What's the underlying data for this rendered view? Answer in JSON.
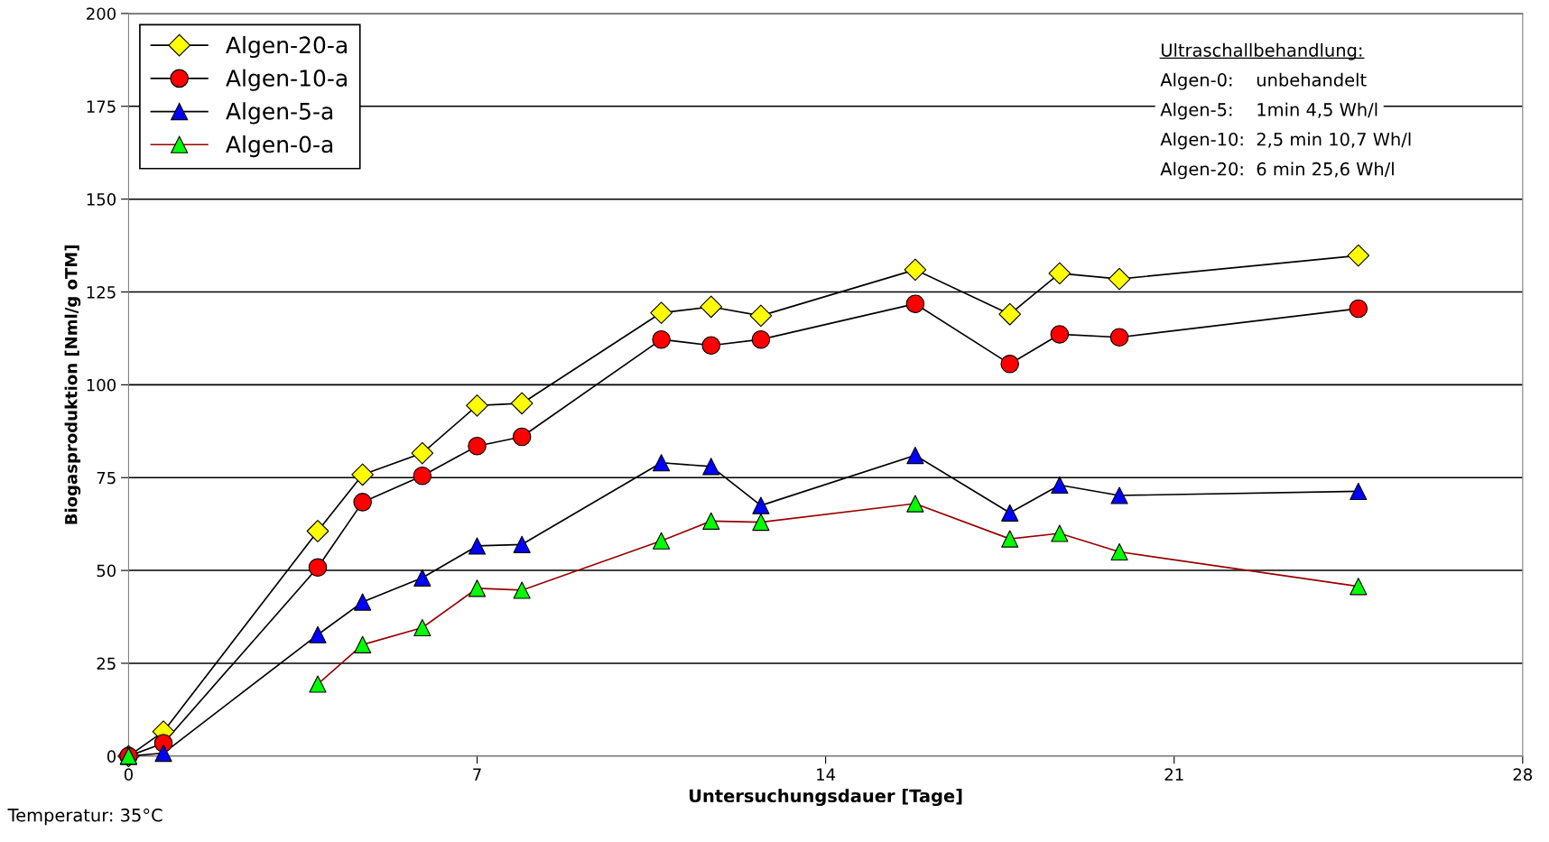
{
  "chart_data": {
    "type": "line",
    "xlabel": "Untersuchungsdauer [Tage]",
    "ylabel": "Biogasproduktion [Nml/g oTM]",
    "x": [
      0,
      0.7,
      3.8,
      4.7,
      5.9,
      7,
      7.9,
      10.7,
      11.7,
      12.7,
      15.8,
      17.7,
      18.7,
      19.9,
      24.7
    ],
    "series": [
      {
        "name": "Algen-20-a",
        "color": "#000000",
        "colors": [
          "#ffff00",
          "#ffff00",
          "#ffff00",
          "#ffff00",
          "#ffff00",
          "#ffff00",
          "#ffff00",
          "#ffff00",
          "#ffff00",
          "#ffff00",
          "#ffff00",
          "#ffff00",
          "#ffff00",
          "#ffff00",
          "#ffff00"
        ],
        "marker": "diamond",
        "values": [
          0,
          6.6,
          60.6,
          75.8,
          81.6,
          94.4,
          95,
          119.4,
          121,
          118.6,
          131,
          119,
          130,
          128.5,
          134.8
        ]
      },
      {
        "name": "Algen-10-a",
        "color": "#000000",
        "colors": [
          "#ff0000",
          "#ff0000",
          "#ff0000",
          "#ff0000",
          "#ff0000",
          "#ff0000",
          "#ff0000",
          "#ff0000",
          "#ff0000",
          "#ff0000",
          "#ff0000",
          "#ff0000",
          "#ff0000",
          "#ff0000",
          "#ff0000"
        ],
        "marker": "circle",
        "values": [
          0,
          3.5,
          50.8,
          68.4,
          75.5,
          83.5,
          86,
          112.2,
          110.6,
          112.2,
          121.8,
          105.6,
          113.6,
          112.8,
          120.5
        ]
      },
      {
        "name": "Algen-5-a",
        "color": "#000000",
        "colors": [
          "#0000ff",
          "#0000ff",
          "#0000ff",
          "#0000ff",
          "#0000ff",
          "#0000ff",
          "#0000ff",
          "#0000ff",
          "#0000ff",
          "#0000ff",
          "#0000ff",
          "#0000ff",
          "#0000ff",
          "#0000ff",
          "#0000ff"
        ],
        "marker": "triangle",
        "values": [
          0,
          0.8,
          32.7,
          41.5,
          48,
          56.6,
          57,
          79,
          78,
          67.5,
          81,
          65.5,
          73,
          70.2,
          71.3
        ]
      },
      {
        "name": "Algen-0-a",
        "color": "#990000",
        "colors": [
          "#00ff00",
          "#00ff00",
          "#00ff00",
          "#00ff00",
          "#00ff00",
          "#00ff00",
          "#00ff00",
          "#00ff00",
          "#00ff00",
          "#00ff00",
          "#00ff00",
          "#00ff00",
          "#00ff00",
          "#00ff00",
          "#00ff00"
        ],
        "marker": "triangle",
        "values": [
          0,
          null,
          19.4,
          30,
          34.6,
          45.2,
          44.7,
          58,
          63.3,
          63,
          68,
          58.5,
          60,
          55,
          45.7
        ]
      }
    ],
    "xlim": [
      0,
      28
    ],
    "xticks": [
      0,
      7,
      14,
      21,
      28
    ],
    "ylim": [
      0,
      200
    ],
    "yticks": [
      0,
      25,
      50,
      75,
      100,
      125,
      150,
      175,
      200
    ],
    "grid": "y",
    "legend": "top left",
    "annotations": [
      "Ultraschallbehandlung:",
      "Algen-0:    unbehandelt",
      "Algen-5:    1min 4,5 Wh/l",
      "Algen-10:  2,5 min 10,7 Wh/l",
      "Algen-20:  6 min 25,6 Wh/l",
      "Temperatur: 35°C"
    ]
  }
}
